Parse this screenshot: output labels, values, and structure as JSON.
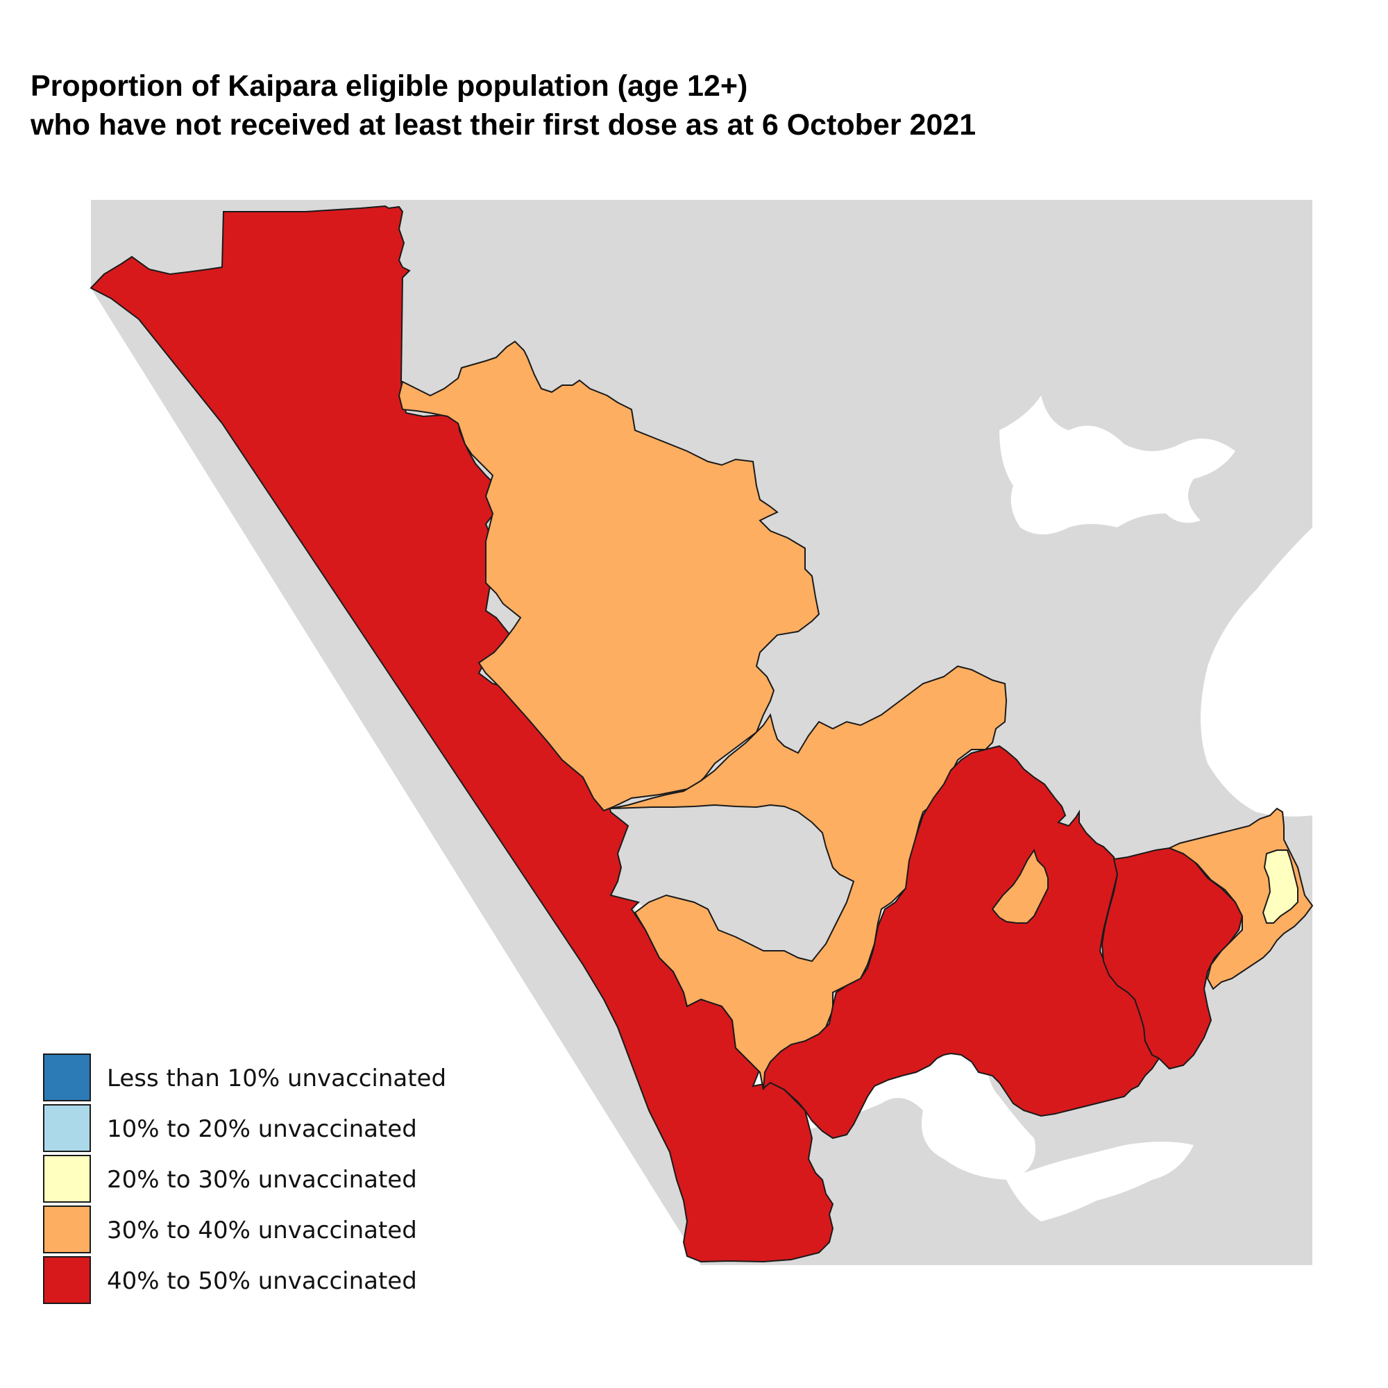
{
  "title": {
    "line1": "Proportion of Kaipara eligible population (age 12+)",
    "line2": "who have not received at least their first dose as at 6 October 2021"
  },
  "colors": {
    "background_land": "#d9d9d9",
    "water": "#ffffff",
    "border": "#1a1a1a",
    "less_than_10": "#2c7bb6",
    "10_to_20": "#abd9e9",
    "20_to_30": "#ffffbf",
    "30_to_40": "#fdae61",
    "40_to_50": "#d7191c"
  },
  "legend": [
    {
      "label": "Less than 10% unvaccinated",
      "color": "#2c7bb6"
    },
    {
      "label": "10% to 20% unvaccinated",
      "color": "#abd9e9"
    },
    {
      "label": "20% to 30% unvaccinated",
      "color": "#ffffbf"
    },
    {
      "label": "30% to 40% unvaccinated",
      "color": "#fdae61"
    },
    {
      "label": "40% to 50% unvaccinated",
      "color": "#d7191c"
    }
  ],
  "regions": [
    {
      "category": "40% to 50% unvaccinated",
      "color": "#d7191c"
    },
    {
      "category": "30% to 40% unvaccinated",
      "color": "#fdae61"
    },
    {
      "category": "30% to 40% unvaccinated",
      "color": "#fdae61"
    },
    {
      "category": "40% to 50% unvaccinated",
      "color": "#d7191c"
    },
    {
      "category": "30% to 40% unvaccinated",
      "color": "#fdae61"
    },
    {
      "category": "40% to 50% unvaccinated",
      "color": "#d7191c"
    },
    {
      "category": "30% to 40% unvaccinated",
      "color": "#fdae61"
    },
    {
      "category": "20% to 30% unvaccinated",
      "color": "#ffffbf"
    }
  ]
}
